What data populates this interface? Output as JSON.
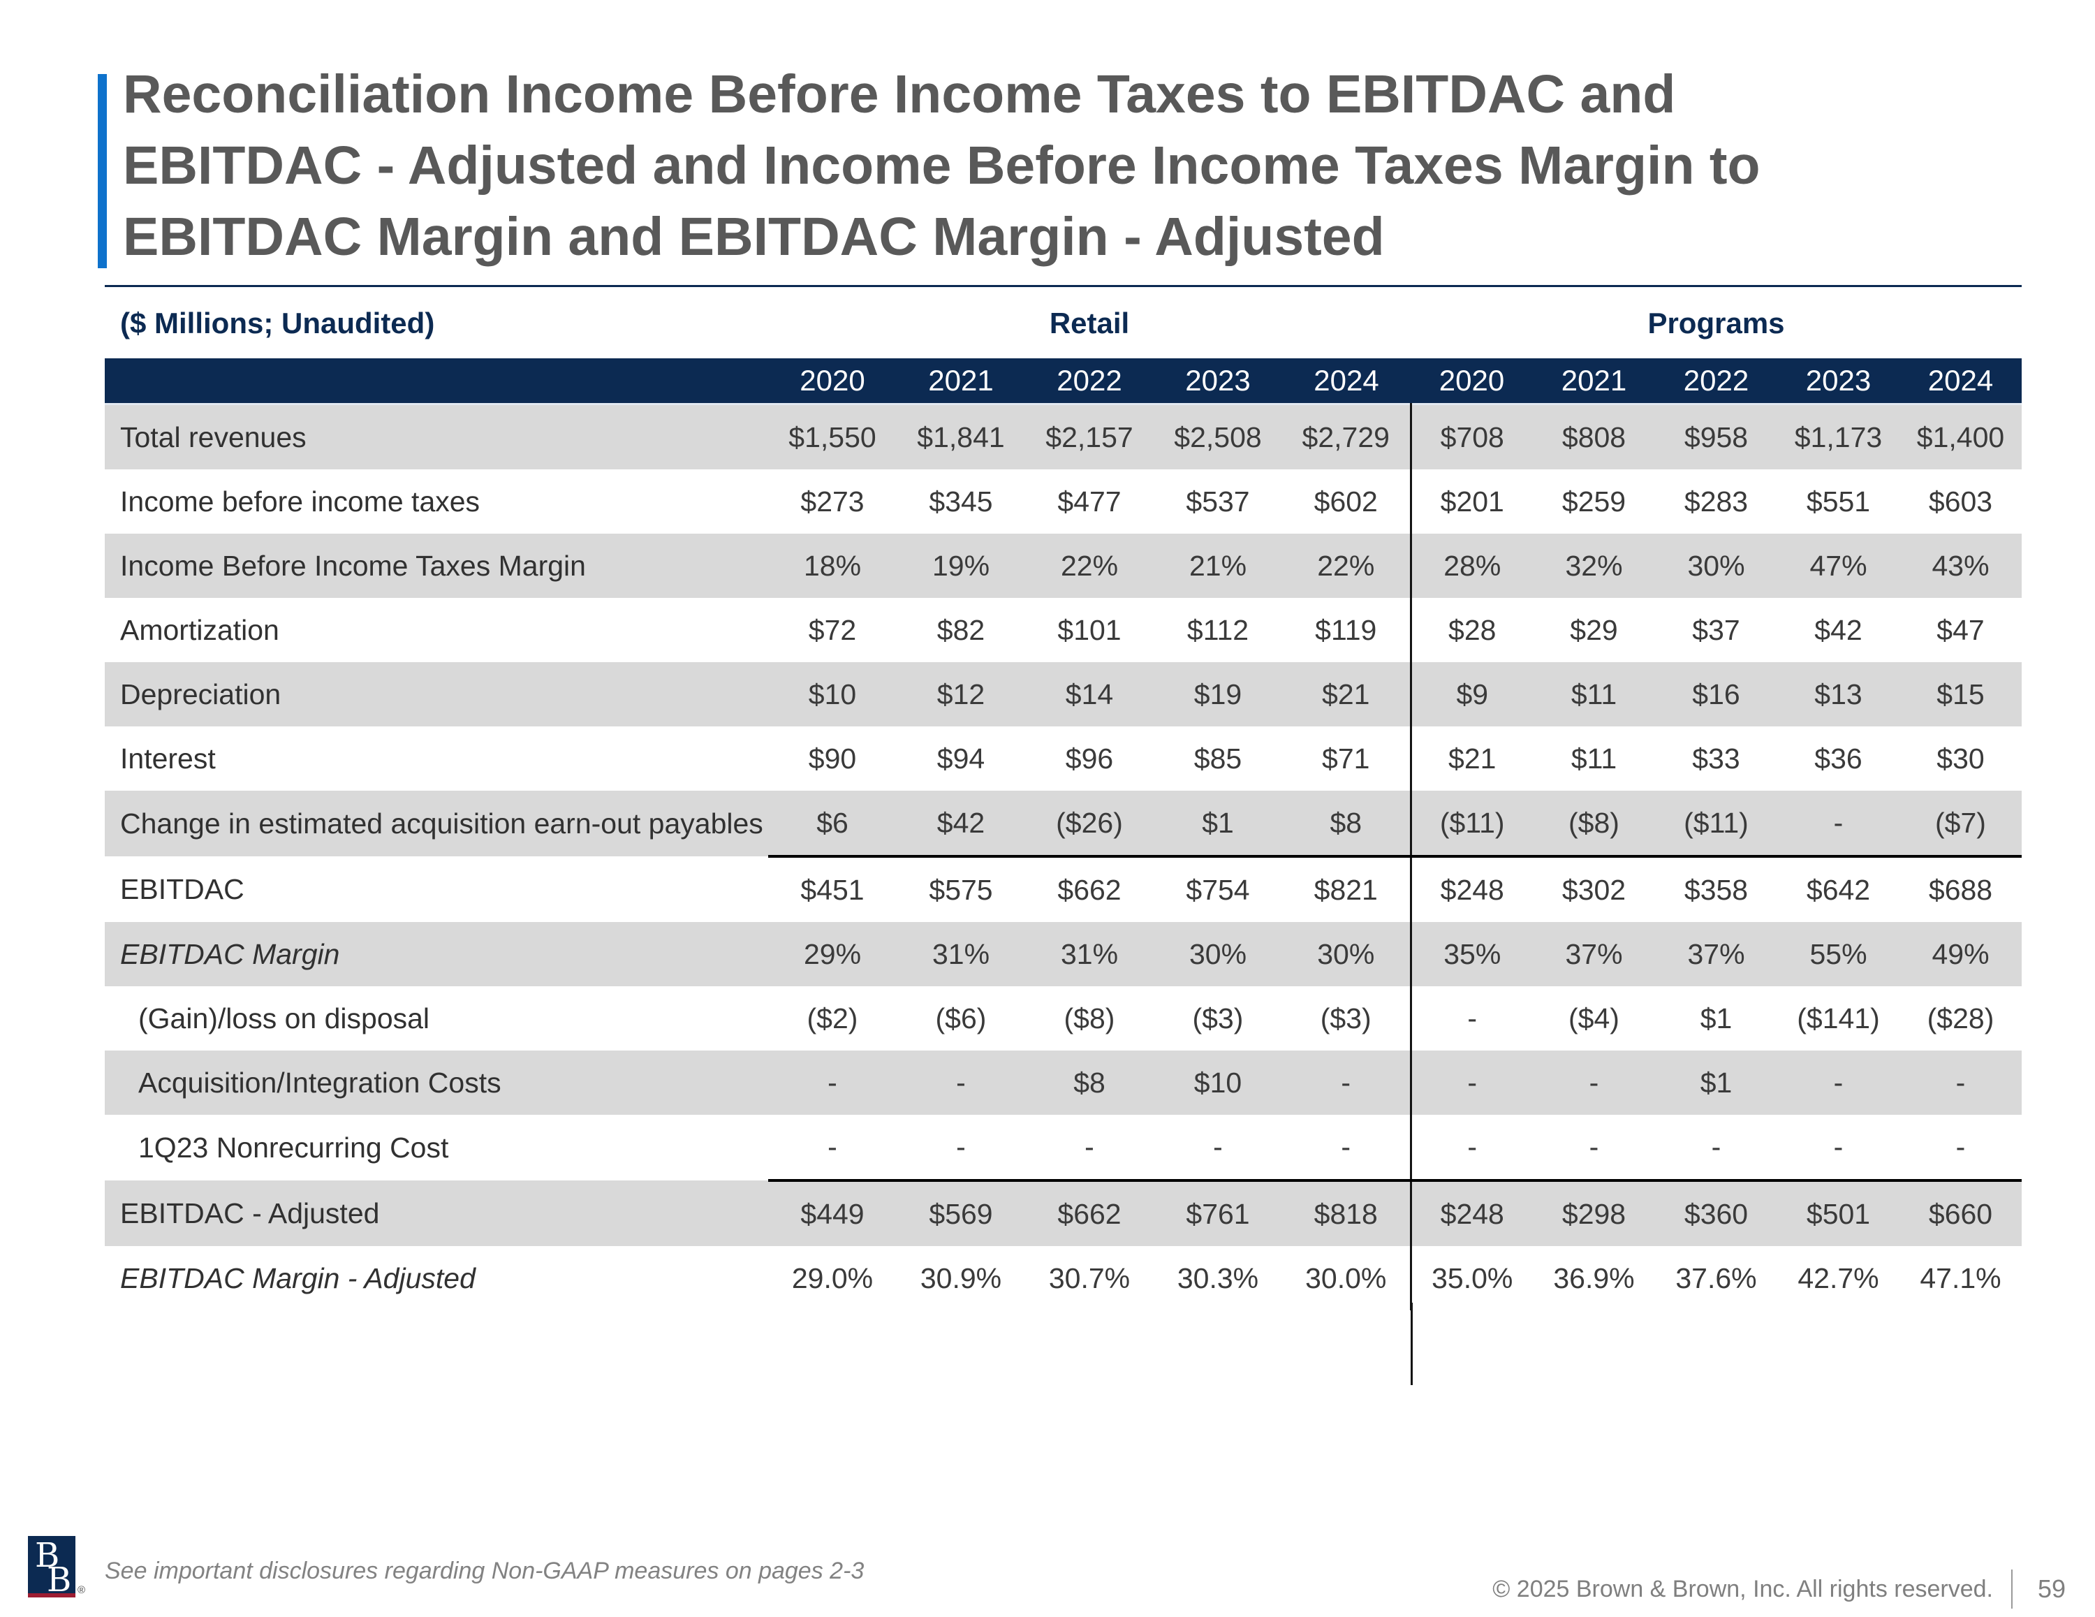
{
  "slide": {
    "title_lines": [
      "Reconciliation Income Before Income Taxes to EBITDAC and",
      "EBITDAC - Adjusted and Income Before Income Taxes Margin to",
      "EBITDAC Margin and EBITDAC Margin - Adjusted"
    ],
    "footer": {
      "disclosure": "See important disclosures regarding Non-GAAP measures on pages 2-3",
      "copyright": "© 2025 Brown & Brown, Inc. All rights reserved.",
      "page_number": "59",
      "logo_letter_top": "B",
      "logo_letter_bottom": "B",
      "registered_mark": "®"
    }
  },
  "table": {
    "units_label": "($ Millions; Unaudited)",
    "segments": [
      {
        "label": "Retail",
        "years": [
          "2020",
          "2021",
          "2022",
          "2023",
          "2024"
        ]
      },
      {
        "label": "Programs",
        "years": [
          "2020",
          "2021",
          "2022",
          "2023",
          "2024"
        ]
      }
    ],
    "rows": [
      {
        "label": "Total revenues",
        "retail": [
          "$1,550",
          "$1,841",
          "$2,157",
          "$2,508",
          "$2,729"
        ],
        "programs": [
          "$708",
          "$808",
          "$958",
          "$1,173",
          "$1,400"
        ]
      },
      {
        "label": "Income before income taxes",
        "retail": [
          "$273",
          "$345",
          "$477",
          "$537",
          "$602"
        ],
        "programs": [
          "$201",
          "$259",
          "$283",
          "$551",
          "$603"
        ]
      },
      {
        "label": "Income Before Income Taxes Margin",
        "retail": [
          "18%",
          "19%",
          "22%",
          "21%",
          "22%"
        ],
        "programs": [
          "28%",
          "32%",
          "30%",
          "47%",
          "43%"
        ]
      },
      {
        "label": "Amortization",
        "retail": [
          "$72",
          "$82",
          "$101",
          "$112",
          "$119"
        ],
        "programs": [
          "$28",
          "$29",
          "$37",
          "$42",
          "$47"
        ]
      },
      {
        "label": "Depreciation",
        "retail": [
          "$10",
          "$12",
          "$14",
          "$19",
          "$21"
        ],
        "programs": [
          "$9",
          "$11",
          "$16",
          "$13",
          "$15"
        ]
      },
      {
        "label": "Interest",
        "retail": [
          "$90",
          "$94",
          "$96",
          "$85",
          "$71"
        ],
        "programs": [
          "$21",
          "$11",
          "$33",
          "$36",
          "$30"
        ]
      },
      {
        "label": "Change in estimated acquisition earn-out payables",
        "rule_below": true,
        "retail": [
          "$6",
          "$42",
          "($26)",
          "$1",
          "$8"
        ],
        "programs": [
          "($11)",
          "($8)",
          "($11)",
          "-",
          "($7)"
        ]
      },
      {
        "label": "EBITDAC",
        "retail": [
          "$451",
          "$575",
          "$662",
          "$754",
          "$821"
        ],
        "programs": [
          "$248",
          "$302",
          "$358",
          "$642",
          "$688"
        ]
      },
      {
        "label": "EBITDAC Margin",
        "italic": true,
        "retail": [
          "29%",
          "31%",
          "31%",
          "30%",
          "30%"
        ],
        "programs": [
          "35%",
          "37%",
          "37%",
          "55%",
          "49%"
        ]
      },
      {
        "label": "(Gain)/loss on disposal",
        "indent": true,
        "retail": [
          "($2)",
          "($6)",
          "($8)",
          "($3)",
          "($3)"
        ],
        "programs": [
          "-",
          "($4)",
          "$1",
          "($141)",
          "($28)"
        ]
      },
      {
        "label": "Acquisition/Integration Costs",
        "indent": true,
        "retail": [
          "-",
          "-",
          "$8",
          "$10",
          "-"
        ],
        "programs": [
          "-",
          "-",
          "$1",
          "-",
          "-"
        ]
      },
      {
        "label": "1Q23 Nonrecurring Cost",
        "indent": true,
        "rule_below": true,
        "retail": [
          "-",
          "-",
          "-",
          "-",
          "-"
        ],
        "programs": [
          "-",
          "-",
          "-",
          "-",
          "-"
        ]
      },
      {
        "label": "EBITDAC - Adjusted",
        "retail": [
          "$449",
          "$569",
          "$662",
          "$761",
          "$818"
        ],
        "programs": [
          "$248",
          "$298",
          "$360",
          "$501",
          "$660"
        ]
      },
      {
        "label": "EBITDAC Margin - Adjusted",
        "italic": true,
        "retail": [
          "29.0%",
          "30.9%",
          "30.7%",
          "30.3%",
          "30.0%"
        ],
        "programs": [
          "35.0%",
          "36.9%",
          "37.6%",
          "42.7%",
          "47.1%"
        ]
      }
    ]
  },
  "colors": {
    "navy": "#0c2a52",
    "accent_blue": "#0e72cc",
    "row_shade": "#d9d9d9",
    "title_gray": "#595959",
    "footer_gray": "#7f7f7f",
    "logo_red": "#9d1d32"
  }
}
